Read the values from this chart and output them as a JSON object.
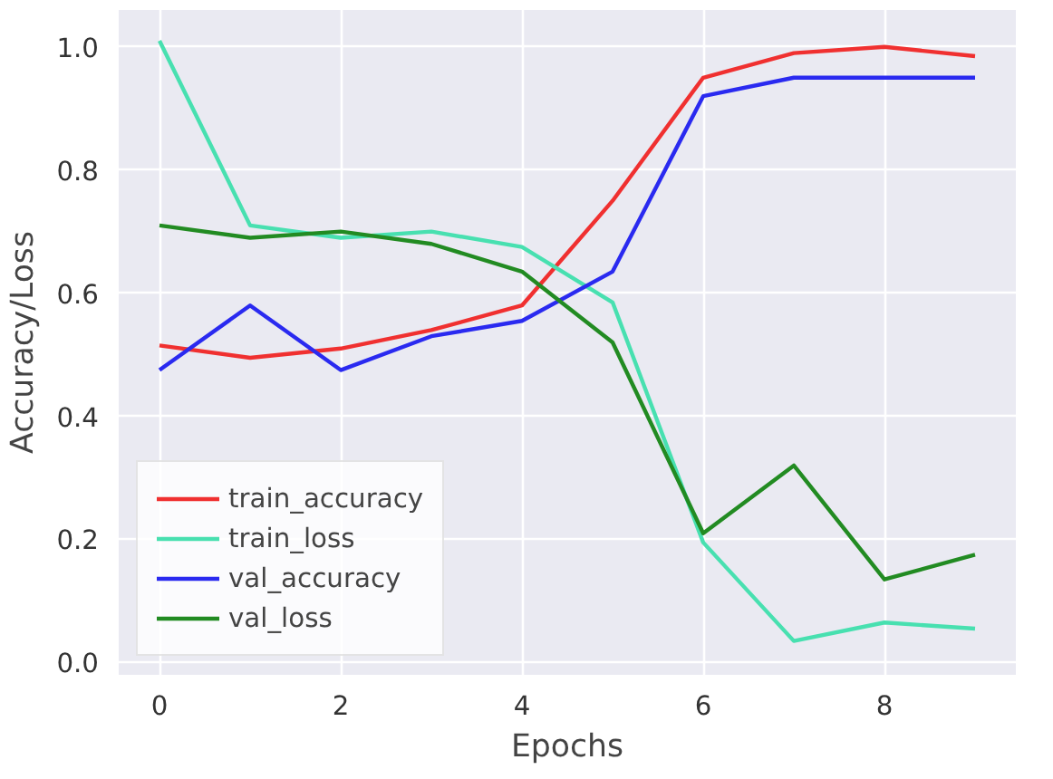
{
  "chart_data": {
    "type": "line",
    "xlabel": "Epochs",
    "ylabel": "Accuracy/Loss",
    "x": [
      0,
      1,
      2,
      3,
      4,
      5,
      6,
      7,
      8,
      9
    ],
    "series": [
      {
        "name": "train_accuracy",
        "color": "#f03030",
        "values": [
          0.515,
          0.495,
          0.51,
          0.54,
          0.58,
          0.75,
          0.95,
          0.99,
          1.0,
          0.985
        ]
      },
      {
        "name": "train_loss",
        "color": "#48e0b0",
        "values": [
          1.01,
          0.71,
          0.69,
          0.7,
          0.675,
          0.585,
          0.195,
          0.035,
          0.065,
          0.055
        ]
      },
      {
        "name": "val_accuracy",
        "color": "#2a2af0",
        "values": [
          0.475,
          0.58,
          0.475,
          0.53,
          0.555,
          0.635,
          0.92,
          0.95,
          0.95,
          0.95
        ]
      },
      {
        "name": "val_loss",
        "color": "#228b22",
        "values": [
          0.71,
          0.69,
          0.7,
          0.68,
          0.635,
          0.52,
          0.21,
          0.32,
          0.135,
          0.175
        ]
      }
    ],
    "xlim": [
      -0.45,
      9.45
    ],
    "ylim": [
      -0.02,
      1.06
    ],
    "xticks": [
      0,
      2,
      4,
      6,
      8
    ],
    "yticks": [
      {
        "value": 0,
        "label": "0.0"
      },
      0.2,
      0.4,
      0.6,
      0.8,
      {
        "value": 1,
        "label": "1.0"
      }
    ],
    "grid": true,
    "legend": "bottom left",
    "line_style": "solid"
  }
}
